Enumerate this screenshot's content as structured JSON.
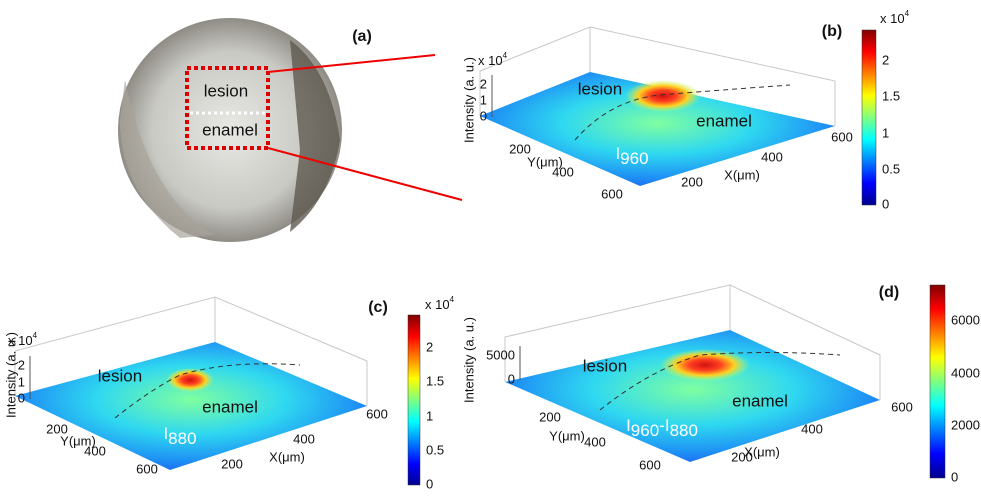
{
  "panel_a": {
    "label": "(a)",
    "annotations": [
      "lesion",
      "enamel"
    ]
  },
  "panel_b": {
    "label": "(b)",
    "z_label": "Intensity (a. u.)",
    "z_scale": {
      "base": "x 10",
      "exponent": "4"
    },
    "z_ticks": [
      "0",
      "1",
      "2"
    ],
    "y_label": "Y(μm)",
    "y_ticks": [
      "200",
      "400",
      "600"
    ],
    "x_label": "X(μm)",
    "x_ticks": [
      "200",
      "400",
      "600"
    ],
    "annotations": [
      "lesion",
      "enamel"
    ],
    "image_label": {
      "symbol": "I",
      "subscript": "960"
    },
    "colorbar": {
      "scale": {
        "base": "x 10",
        "exponent": "4"
      },
      "ticks": [
        "0",
        "0.5",
        "1",
        "1.5",
        "2"
      ]
    }
  },
  "panel_c": {
    "label": "(c)",
    "z_label": "Intensity (a. u.)",
    "z_scale": {
      "base": "x 10",
      "exponent": "4"
    },
    "z_ticks": [
      "0",
      "1",
      "2"
    ],
    "y_label": "Y(μm)",
    "y_ticks": [
      "200",
      "400",
      "600"
    ],
    "x_label": "X(μm)",
    "x_ticks": [
      "200",
      "400",
      "600"
    ],
    "annotations": [
      "lesion",
      "enamel"
    ],
    "image_label": {
      "symbol": "I",
      "subscript": "880"
    },
    "colorbar": {
      "scale": {
        "base": "x 10",
        "exponent": "4"
      },
      "ticks": [
        "0",
        "0.5",
        "1",
        "1.5",
        "2"
      ]
    }
  },
  "panel_d": {
    "label": "(d)",
    "z_label": "Intensity (a. u.)",
    "z_ticks": [
      "0",
      "5000"
    ],
    "y_label": "Y(μm)",
    "y_ticks": [
      "200",
      "400",
      "600"
    ],
    "x_label": "X(μm)",
    "x_ticks": [
      "200",
      "400",
      "600"
    ],
    "annotations": [
      "lesion",
      "enamel"
    ],
    "image_label": {
      "symbol_1": "I",
      "subscript_1": "960",
      "separator": "-I",
      "subscript_2": "880"
    },
    "colorbar": {
      "ticks": [
        "0",
        "2000",
        "4000",
        "6000"
      ]
    }
  }
}
